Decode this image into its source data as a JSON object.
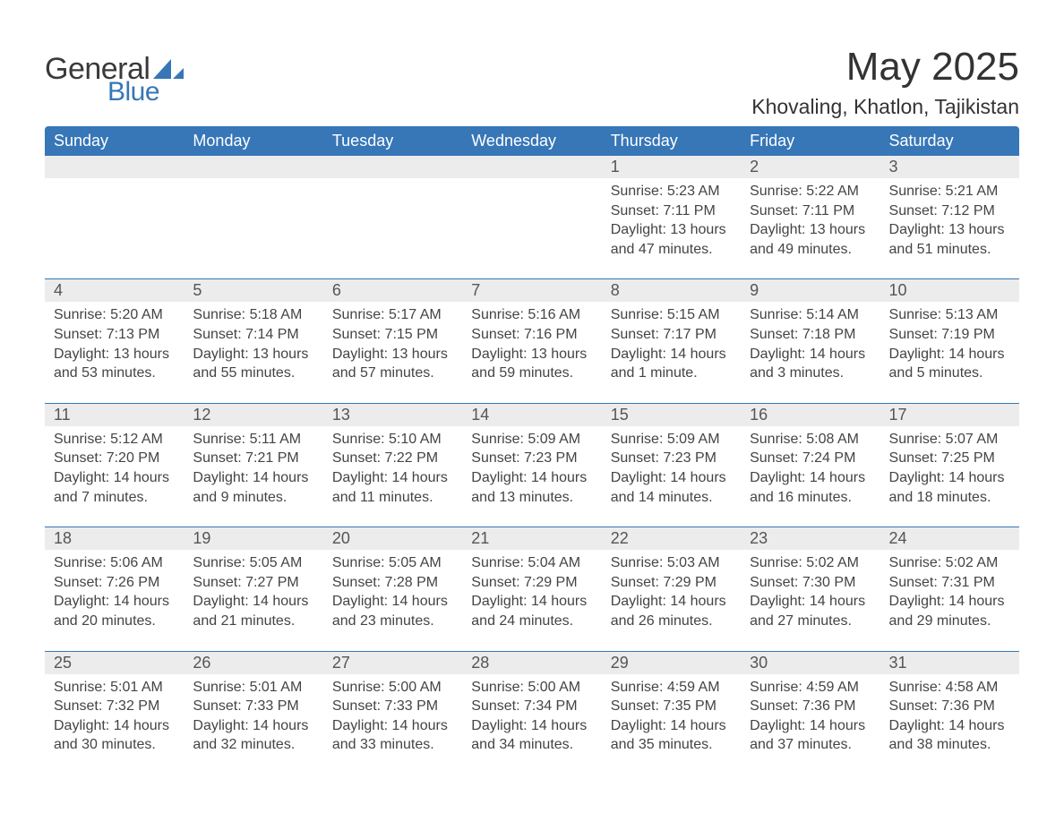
{
  "brand": {
    "word1": "General",
    "word2": "Blue",
    "brand_color": "#3776b7"
  },
  "title": "May 2025",
  "location": "Khovaling, Khatlon, Tajikistan",
  "colors": {
    "header_bg": "#3776b7",
    "header_text": "#ffffff",
    "daynum_bg": "#ececec",
    "rule": "#3776b7",
    "body_text": "#444444",
    "page_bg": "#ffffff"
  },
  "typography": {
    "title_fontsize": 44,
    "location_fontsize": 23,
    "header_fontsize": 18,
    "daynum_fontsize": 18,
    "body_fontsize": 16
  },
  "day_headers": [
    "Sunday",
    "Monday",
    "Tuesday",
    "Wednesday",
    "Thursday",
    "Friday",
    "Saturday"
  ],
  "weeks": [
    [
      null,
      null,
      null,
      null,
      {
        "n": "1",
        "sr": "5:23 AM",
        "ss": "7:11 PM",
        "dl": "13 hours and 47 minutes."
      },
      {
        "n": "2",
        "sr": "5:22 AM",
        "ss": "7:11 PM",
        "dl": "13 hours and 49 minutes."
      },
      {
        "n": "3",
        "sr": "5:21 AM",
        "ss": "7:12 PM",
        "dl": "13 hours and 51 minutes."
      }
    ],
    [
      {
        "n": "4",
        "sr": "5:20 AM",
        "ss": "7:13 PM",
        "dl": "13 hours and 53 minutes."
      },
      {
        "n": "5",
        "sr": "5:18 AM",
        "ss": "7:14 PM",
        "dl": "13 hours and 55 minutes."
      },
      {
        "n": "6",
        "sr": "5:17 AM",
        "ss": "7:15 PM",
        "dl": "13 hours and 57 minutes."
      },
      {
        "n": "7",
        "sr": "5:16 AM",
        "ss": "7:16 PM",
        "dl": "13 hours and 59 minutes."
      },
      {
        "n": "8",
        "sr": "5:15 AM",
        "ss": "7:17 PM",
        "dl": "14 hours and 1 minute."
      },
      {
        "n": "9",
        "sr": "5:14 AM",
        "ss": "7:18 PM",
        "dl": "14 hours and 3 minutes."
      },
      {
        "n": "10",
        "sr": "5:13 AM",
        "ss": "7:19 PM",
        "dl": "14 hours and 5 minutes."
      }
    ],
    [
      {
        "n": "11",
        "sr": "5:12 AM",
        "ss": "7:20 PM",
        "dl": "14 hours and 7 minutes."
      },
      {
        "n": "12",
        "sr": "5:11 AM",
        "ss": "7:21 PM",
        "dl": "14 hours and 9 minutes."
      },
      {
        "n": "13",
        "sr": "5:10 AM",
        "ss": "7:22 PM",
        "dl": "14 hours and 11 minutes."
      },
      {
        "n": "14",
        "sr": "5:09 AM",
        "ss": "7:23 PM",
        "dl": "14 hours and 13 minutes."
      },
      {
        "n": "15",
        "sr": "5:09 AM",
        "ss": "7:23 PM",
        "dl": "14 hours and 14 minutes."
      },
      {
        "n": "16",
        "sr": "5:08 AM",
        "ss": "7:24 PM",
        "dl": "14 hours and 16 minutes."
      },
      {
        "n": "17",
        "sr": "5:07 AM",
        "ss": "7:25 PM",
        "dl": "14 hours and 18 minutes."
      }
    ],
    [
      {
        "n": "18",
        "sr": "5:06 AM",
        "ss": "7:26 PM",
        "dl": "14 hours and 20 minutes."
      },
      {
        "n": "19",
        "sr": "5:05 AM",
        "ss": "7:27 PM",
        "dl": "14 hours and 21 minutes."
      },
      {
        "n": "20",
        "sr": "5:05 AM",
        "ss": "7:28 PM",
        "dl": "14 hours and 23 minutes."
      },
      {
        "n": "21",
        "sr": "5:04 AM",
        "ss": "7:29 PM",
        "dl": "14 hours and 24 minutes."
      },
      {
        "n": "22",
        "sr": "5:03 AM",
        "ss": "7:29 PM",
        "dl": "14 hours and 26 minutes."
      },
      {
        "n": "23",
        "sr": "5:02 AM",
        "ss": "7:30 PM",
        "dl": "14 hours and 27 minutes."
      },
      {
        "n": "24",
        "sr": "5:02 AM",
        "ss": "7:31 PM",
        "dl": "14 hours and 29 minutes."
      }
    ],
    [
      {
        "n": "25",
        "sr": "5:01 AM",
        "ss": "7:32 PM",
        "dl": "14 hours and 30 minutes."
      },
      {
        "n": "26",
        "sr": "5:01 AM",
        "ss": "7:33 PM",
        "dl": "14 hours and 32 minutes."
      },
      {
        "n": "27",
        "sr": "5:00 AM",
        "ss": "7:33 PM",
        "dl": "14 hours and 33 minutes."
      },
      {
        "n": "28",
        "sr": "5:00 AM",
        "ss": "7:34 PM",
        "dl": "14 hours and 34 minutes."
      },
      {
        "n": "29",
        "sr": "4:59 AM",
        "ss": "7:35 PM",
        "dl": "14 hours and 35 minutes."
      },
      {
        "n": "30",
        "sr": "4:59 AM",
        "ss": "7:36 PM",
        "dl": "14 hours and 37 minutes."
      },
      {
        "n": "31",
        "sr": "4:58 AM",
        "ss": "7:36 PM",
        "dl": "14 hours and 38 minutes."
      }
    ]
  ],
  "labels": {
    "sunrise": "Sunrise: ",
    "sunset": "Sunset: ",
    "daylight": "Daylight: "
  }
}
